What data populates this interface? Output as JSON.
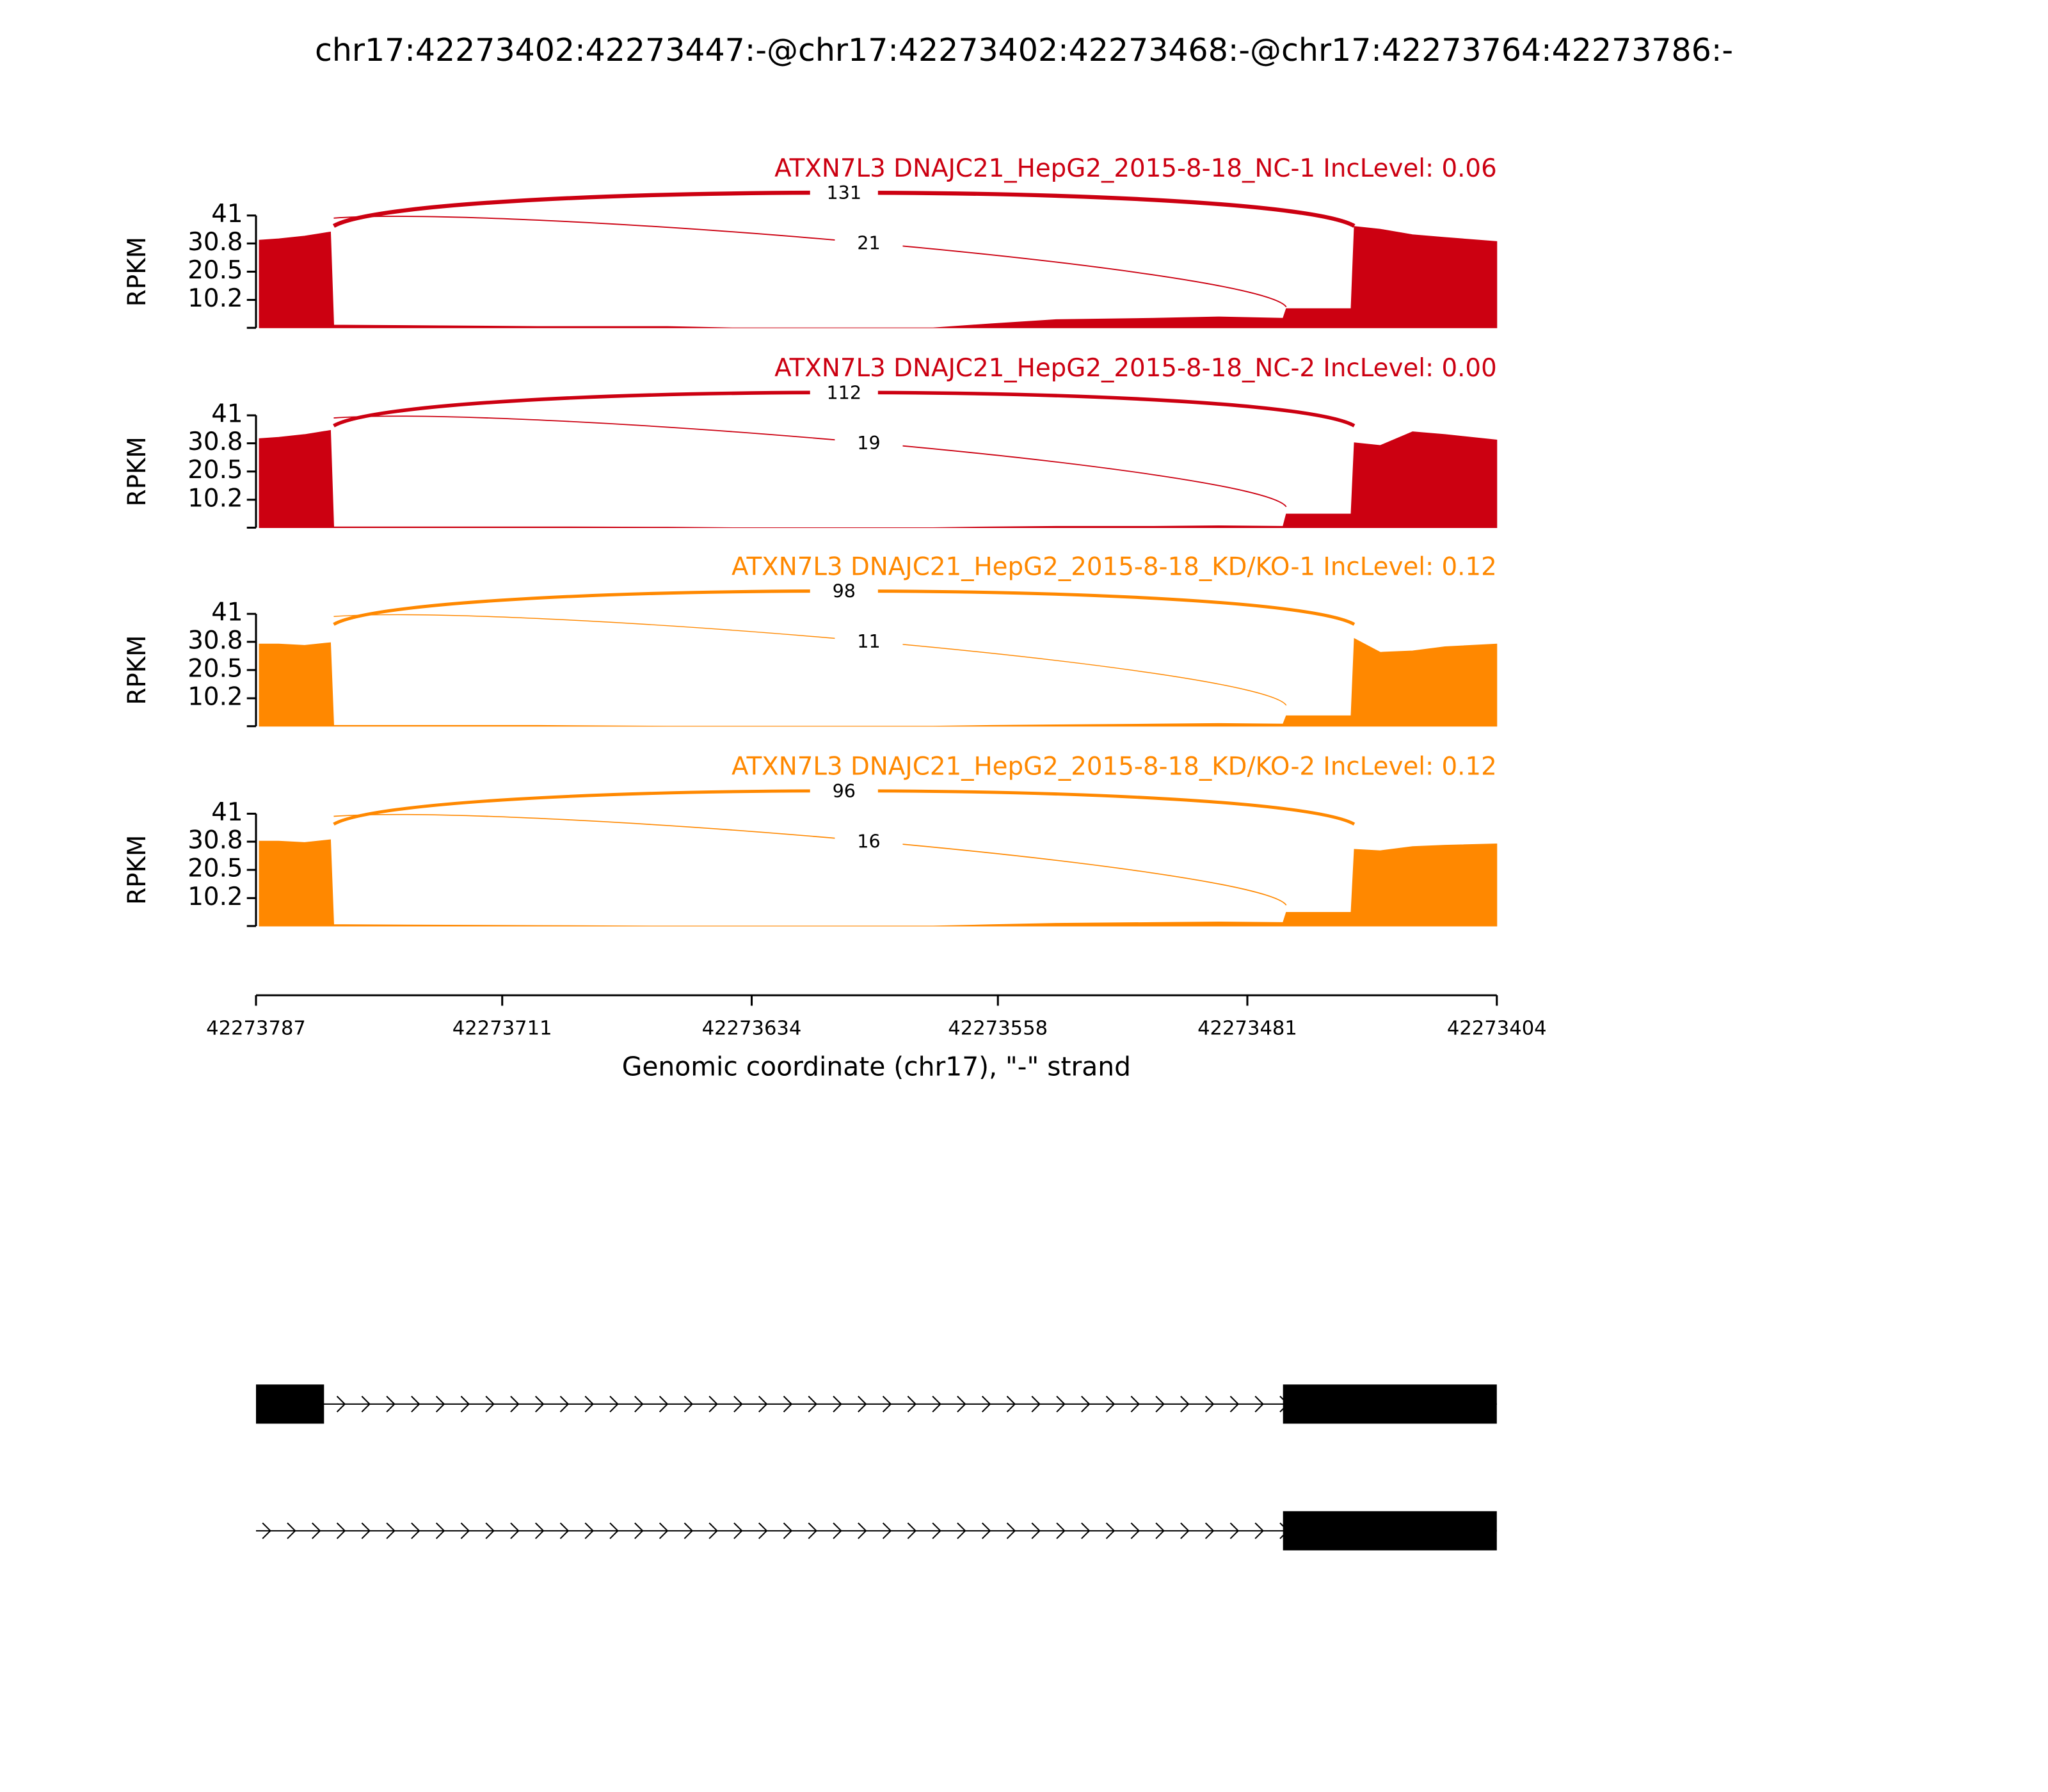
{
  "title": "chr17:42273402:42273447:-@chr17:42273402:42273468:-@chr17:42273764:42273786:-",
  "chart_data": [
    {
      "type": "area",
      "title": "ATXN7L3 DNAJC21_HepG2_2015-8-18_NC-1 IncLevel: 0.06",
      "color": "#cc0011",
      "ylabel": "RPKM",
      "ylim": [
        0,
        41
      ],
      "yticks": [
        10.2,
        20.5,
        30.8,
        41
      ],
      "x": [
        42273786,
        42273780,
        42273772,
        42273764,
        42273763,
        42273760,
        42273700,
        42273660,
        42273640,
        42273578,
        42273560,
        42273540,
        42273510,
        42273490,
        42273470,
        42273469,
        42273449,
        42273448,
        42273440,
        42273430,
        42273420,
        42273404
      ],
      "values": [
        32,
        32.5,
        33.5,
        35,
        1,
        1,
        0.5,
        0.5,
        0,
        0,
        1.5,
        3,
        3.5,
        4,
        3.5,
        7,
        7,
        37,
        36,
        34,
        33,
        31.5
      ],
      "junctions": [
        {
          "count": 131,
          "start": 42273763,
          "end": 42273448
        },
        {
          "count": 21,
          "start": 42273763,
          "end": 42273469
        }
      ]
    },
    {
      "type": "area",
      "title": "ATXN7L3 DNAJC21_HepG2_2015-8-18_NC-2 IncLevel: 0.00",
      "color": "#cc0011",
      "ylabel": "RPKM",
      "ylim": [
        0,
        41
      ],
      "yticks": [
        10.2,
        20.5,
        30.8,
        41
      ],
      "x": [
        42273786,
        42273780,
        42273772,
        42273764,
        42273763,
        42273760,
        42273700,
        42273660,
        42273640,
        42273578,
        42273560,
        42273540,
        42273510,
        42273490,
        42273470,
        42273469,
        42273449,
        42273448,
        42273440,
        42273430,
        42273420,
        42273404
      ],
      "values": [
        32.5,
        33,
        34,
        35.5,
        0.3,
        0.3,
        0.3,
        0.2,
        0,
        0,
        0.3,
        0.5,
        0.5,
        0.7,
        0.5,
        5,
        5,
        31,
        30,
        35,
        34,
        32
      ],
      "junctions": [
        {
          "count": 112,
          "start": 42273763,
          "end": 42273448
        },
        {
          "count": 19,
          "start": 42273763,
          "end": 42273469
        }
      ]
    },
    {
      "type": "area",
      "title": "ATXN7L3 DNAJC21_HepG2_2015-8-18_KD/KO-1 IncLevel: 0.12",
      "color": "#ff8800",
      "ylabel": "RPKM",
      "ylim": [
        0,
        41
      ],
      "yticks": [
        10.2,
        20.5,
        30.8,
        41
      ],
      "x": [
        42273786,
        42273780,
        42273772,
        42273764,
        42273763,
        42273760,
        42273700,
        42273660,
        42273640,
        42273578,
        42273560,
        42273540,
        42273510,
        42273490,
        42273470,
        42273469,
        42273449,
        42273448,
        42273440,
        42273430,
        42273420,
        42273404
      ],
      "values": [
        30,
        30,
        29.5,
        30.5,
        0.3,
        0.3,
        0.3,
        0,
        0,
        0,
        0.3,
        0.5,
        0.8,
        1,
        0.8,
        3.8,
        3.8,
        32,
        27,
        27.5,
        29,
        30
      ],
      "junctions": [
        {
          "count": 98,
          "start": 42273763,
          "end": 42273448
        },
        {
          "count": 11,
          "start": 42273763,
          "end": 42273469
        }
      ]
    },
    {
      "type": "area",
      "title": "ATXN7L3 DNAJC21_HepG2_2015-8-18_KD/KO-2 IncLevel: 0.12",
      "color": "#ff8800",
      "ylabel": "RPKM",
      "ylim": [
        0,
        41
      ],
      "yticks": [
        10.2,
        20.5,
        30.8,
        41
      ],
      "x": [
        42273786,
        42273780,
        42273772,
        42273764,
        42273763,
        42273760,
        42273700,
        42273660,
        42273640,
        42273578,
        42273560,
        42273540,
        42273510,
        42273490,
        42273470,
        42273469,
        42273449,
        42273448,
        42273440,
        42273430,
        42273420,
        42273404
      ],
      "values": [
        31,
        31,
        30.5,
        31.5,
        0.5,
        0.5,
        0.2,
        0,
        0,
        0,
        0.5,
        1,
        1.3,
        1.5,
        1.3,
        5,
        5,
        28,
        27.5,
        29,
        29.5,
        30
      ],
      "junctions": [
        {
          "count": 96,
          "start": 42273763,
          "end": 42273448
        },
        {
          "count": 16,
          "start": 42273763,
          "end": 42273469
        }
      ]
    }
  ],
  "xaxis": {
    "xlim": [
      42273787,
      42273404
    ],
    "xticks": [
      42273787,
      42273711,
      42273634,
      42273558,
      42273481,
      42273404
    ],
    "xlabel": "Genomic coordinate (chr17), \"-\" strand"
  },
  "transcripts": [
    {
      "start": 42273787,
      "end": 42273404,
      "exons": [
        [
          42273787,
          42273766
        ],
        [
          42273470,
          42273404
        ]
      ]
    },
    {
      "start": 42273787,
      "end": 42273404,
      "exons": [
        [
          42273470,
          42273404
        ]
      ]
    }
  ]
}
